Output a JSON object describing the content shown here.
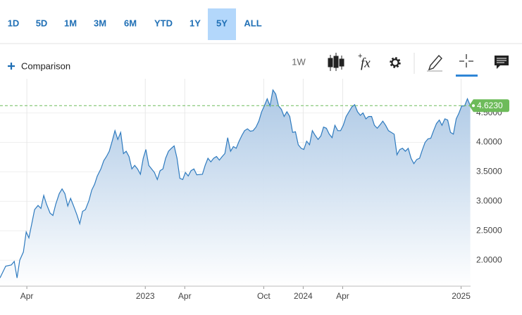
{
  "toolbar": {
    "ranges": [
      "1D",
      "5D",
      "1M",
      "3M",
      "6M",
      "YTD",
      "1Y",
      "5Y",
      "ALL"
    ],
    "active_range": "5Y",
    "comparison": "Comparison",
    "interval": "1W",
    "fx": "fx"
  },
  "chart_data": {
    "type": "area",
    "color": "#2f7bbf",
    "fill": "#a9c6e4",
    "grid": true,
    "last_price_color": "#6dbb5a",
    "last_price_label": "4.6230",
    "x": [
      2022.08,
      2022.116,
      2022.152,
      2022.17,
      2022.188,
      2022.205,
      2022.228,
      2022.246,
      2022.263,
      2022.281,
      2022.299,
      2022.321,
      2022.339,
      2022.357,
      2022.375,
      2022.397,
      2022.415,
      2022.433,
      2022.455,
      2022.473,
      2022.491,
      2022.509,
      2022.527,
      2022.545,
      2022.567,
      2022.585,
      2022.603,
      2022.621,
      2022.643,
      2022.661,
      2022.679,
      2022.696,
      2022.719,
      2022.737,
      2022.754,
      2022.772,
      2022.79,
      2022.808,
      2022.826,
      2022.844,
      2022.862,
      2022.879,
      2022.897,
      2022.915,
      2022.933,
      2022.951,
      2022.969,
      2022.987,
      2023.004,
      2023.022,
      2023.04,
      2023.058,
      2023.076,
      2023.094,
      2023.112,
      2023.129,
      2023.147,
      2023.165,
      2023.183,
      2023.201,
      2023.219,
      2023.237,
      2023.254,
      2023.272,
      2023.29,
      2023.308,
      2023.326,
      2023.362,
      2023.379,
      2023.397,
      2023.415,
      2023.433,
      2023.451,
      2023.469,
      2023.487,
      2023.504,
      2023.522,
      2023.54,
      2023.558,
      2023.576,
      2023.594,
      2023.612,
      2023.629,
      2023.647,
      2023.665,
      2023.683,
      2023.701,
      2023.719,
      2023.737,
      2023.754,
      2023.772,
      2023.79,
      2023.808,
      2023.826,
      2023.844,
      2023.862,
      2023.879,
      2023.897,
      2023.915,
      2023.933,
      2023.951,
      2023.969,
      2023.987,
      2024.004,
      2024.022,
      2024.04,
      2024.058,
      2024.076,
      2024.094,
      2024.112,
      2024.129,
      2024.147,
      2024.165,
      2024.183,
      2024.201,
      2024.219,
      2024.237,
      2024.254,
      2024.272,
      2024.29,
      2024.308,
      2024.326,
      2024.344,
      2024.362,
      2024.379,
      2024.397,
      2024.415,
      2024.433,
      2024.451,
      2024.469,
      2024.487,
      2024.504,
      2024.522,
      2024.54,
      2024.576,
      2024.594,
      2024.612,
      2024.629,
      2024.647,
      2024.665,
      2024.683,
      2024.701,
      2024.719,
      2024.737,
      2024.754,
      2024.772,
      2024.79,
      2024.808,
      2024.826,
      2024.844,
      2024.862,
      2024.879,
      2024.897,
      2024.915,
      2024.933,
      2024.951,
      2024.969,
      2024.987,
      2025.004,
      2025.022,
      2025.04,
      2025.058
    ],
    "values": [
      1.7,
      1.9,
      1.92,
      1.98,
      1.7,
      2.0,
      2.14,
      2.48,
      2.38,
      2.62,
      2.86,
      2.93,
      2.88,
      3.1,
      2.95,
      2.8,
      2.76,
      2.95,
      3.13,
      3.21,
      3.13,
      2.92,
      3.05,
      2.93,
      2.77,
      2.62,
      2.83,
      2.86,
      3.01,
      3.19,
      3.29,
      3.43,
      3.55,
      3.69,
      3.76,
      3.85,
      4.02,
      4.2,
      4.05,
      4.17,
      3.81,
      3.85,
      3.76,
      3.55,
      3.61,
      3.55,
      3.46,
      3.73,
      3.88,
      3.61,
      3.55,
      3.49,
      3.37,
      3.52,
      3.55,
      3.73,
      3.85,
      3.9,
      3.94,
      3.73,
      3.39,
      3.37,
      3.49,
      3.43,
      3.52,
      3.55,
      3.45,
      3.46,
      3.61,
      3.73,
      3.67,
      3.73,
      3.76,
      3.7,
      3.76,
      3.81,
      4.08,
      3.85,
      3.93,
      3.9,
      4.02,
      4.12,
      4.2,
      4.23,
      4.19,
      4.2,
      4.26,
      4.36,
      4.52,
      4.62,
      4.74,
      4.62,
      4.89,
      4.82,
      4.62,
      4.56,
      4.44,
      4.52,
      4.44,
      4.17,
      4.18,
      3.96,
      3.9,
      3.88,
      4.02,
      3.96,
      4.2,
      4.12,
      4.05,
      4.11,
      4.26,
      4.24,
      4.14,
      4.08,
      4.29,
      4.2,
      4.2,
      4.29,
      4.44,
      4.52,
      4.6,
      4.64,
      4.52,
      4.46,
      4.5,
      4.4,
      4.44,
      4.44,
      4.29,
      4.24,
      4.3,
      4.36,
      4.29,
      4.2,
      4.14,
      3.79,
      3.88,
      3.9,
      3.85,
      3.9,
      3.73,
      3.64,
      3.71,
      3.73,
      3.87,
      4.0,
      4.06,
      4.07,
      4.2,
      4.32,
      4.38,
      4.29,
      4.4,
      4.38,
      4.17,
      4.14,
      4.4,
      4.5,
      4.62,
      4.62,
      4.74,
      4.623
    ],
    "xlim": [
      2022.08,
      2025.06
    ],
    "xticks": [
      {
        "value": 2022.25,
        "label": "Apr"
      },
      2023,
      {
        "value": 2023.25,
        "label": "Apr"
      },
      {
        "value": 2023.75,
        "label": "Oct"
      },
      2024,
      {
        "value": 2024.25,
        "label": "Apr"
      },
      2025
    ],
    "ylim": [
      1.56,
      5.08
    ],
    "yticks": [
      {
        "value": 2,
        "label": "2.0000"
      },
      {
        "value": 2.5,
        "label": "2.5000"
      },
      {
        "value": 3,
        "label": "3.0000"
      },
      {
        "value": 3.5,
        "label": "3.5000"
      },
      {
        "value": 4,
        "label": "4.0000"
      },
      {
        "value": 4.5,
        "label": "4.5000"
      }
    ]
  }
}
